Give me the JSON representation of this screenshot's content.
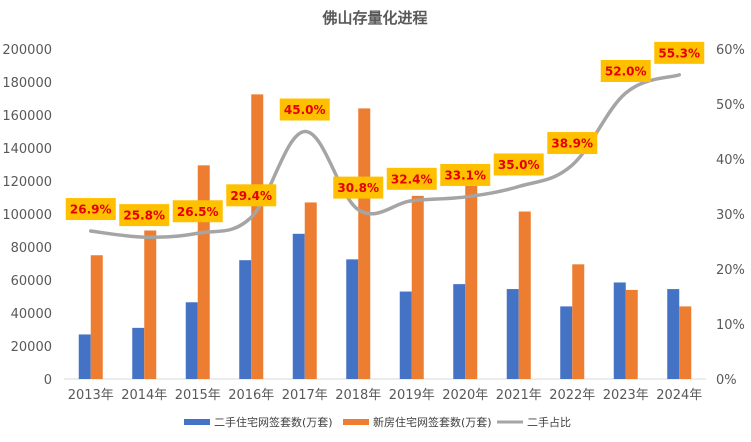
{
  "chart_data": {
    "type": "bar",
    "title": "佛山存量化进程",
    "categories": [
      "2013年",
      "2014年",
      "2015年",
      "2016年",
      "2017年",
      "2018年",
      "2019年",
      "2020年",
      "2021年",
      "2022年",
      "2023年",
      "2024年"
    ],
    "series": [
      {
        "name": "二手住宅网签套数(万套)",
        "type": "bar",
        "axis": "left",
        "color": "#4472C4",
        "values": [
          27000,
          31000,
          46500,
          72000,
          88000,
          72500,
          53000,
          57500,
          54500,
          44000,
          58500,
          54500
        ]
      },
      {
        "name": "新房住宅网签套数(万套)",
        "type": "bar",
        "axis": "left",
        "color": "#ED7D31",
        "values": [
          75000,
          90000,
          129500,
          172500,
          107000,
          164000,
          111000,
          117000,
          101500,
          69500,
          54000,
          44000
        ]
      },
      {
        "name": "二手占比",
        "type": "line",
        "axis": "right",
        "color": "#A5A5A5",
        "values": [
          26.9,
          25.8,
          26.5,
          29.4,
          45.0,
          30.8,
          32.4,
          33.1,
          35.0,
          38.9,
          52.0,
          55.3
        ]
      }
    ],
    "data_labels": [
      "26.9%",
      "25.8%",
      "26.5%",
      "29.4%",
      "45.0%",
      "30.8%",
      "32.4%",
      "33.1%",
      "35.0%",
      "38.9%",
      "52.0%",
      "55.3%"
    ],
    "y_left": {
      "min": 0,
      "max": 200000,
      "step": 20000,
      "ticks": [
        "0",
        "20000",
        "40000",
        "60000",
        "80000",
        "100000",
        "120000",
        "140000",
        "160000",
        "180000",
        "200000"
      ]
    },
    "y_right": {
      "min": 0,
      "max": 60,
      "step": 10,
      "ticks": [
        "0%",
        "10%",
        "20%",
        "30%",
        "40%",
        "50%",
        "60%"
      ]
    },
    "label_bg": "#FFC000",
    "label_color": "#E60000",
    "legend": "bottom",
    "grid": false
  }
}
